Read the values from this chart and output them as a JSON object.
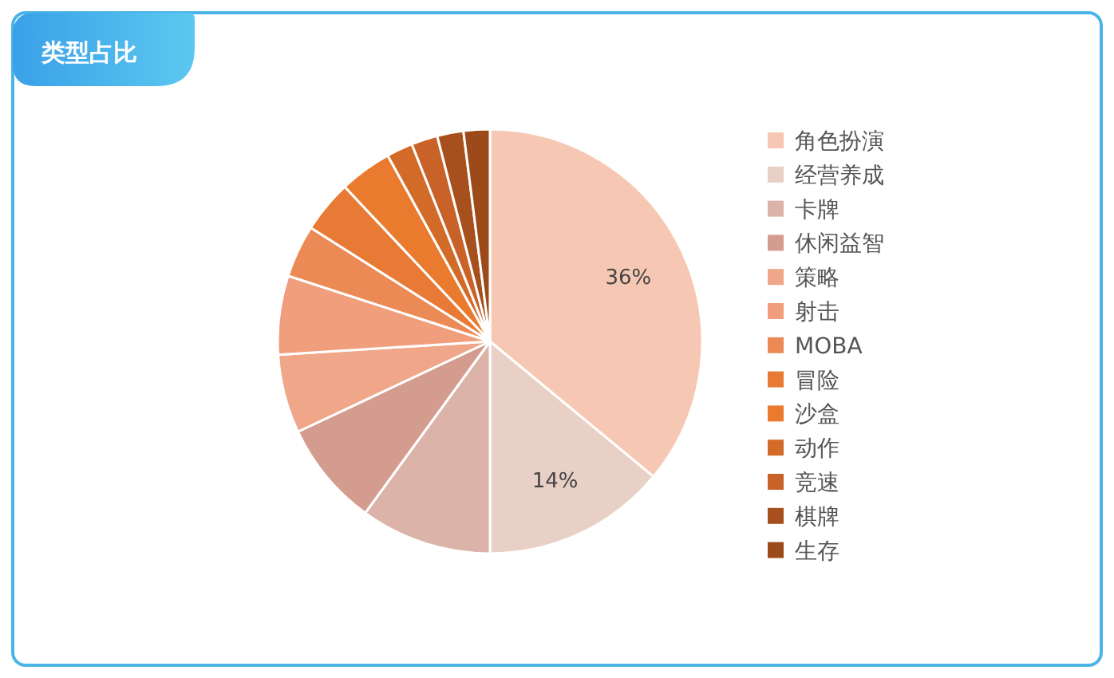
{
  "chart_data": {
    "type": "pie",
    "title": "类型占比",
    "categories": [
      "角色扮演",
      "经营养成",
      "卡牌",
      "休闲益智",
      "策略",
      "射击",
      "MOBA",
      "冒险",
      "沙盒",
      "动作",
      "竞速",
      "棋牌",
      "生存"
    ],
    "values": [
      36,
      14,
      10,
      8,
      6,
      6,
      4,
      4,
      4,
      2,
      2,
      2,
      2
    ],
    "colors": [
      "#f6c8b4",
      "#e8d0c7",
      "#dbb3a8",
      "#d39c8e",
      "#f0a688",
      "#f09e7c",
      "#ec8a55",
      "#e87a35",
      "#e97a2e",
      "#d26a28",
      "#c86228",
      "#a84f1e",
      "#9c4a1a"
    ],
    "value_labels": [
      "36%",
      "14%",
      null,
      null,
      null,
      null,
      null,
      null,
      null,
      null,
      null,
      null,
      null
    ],
    "legend": "right"
  }
}
